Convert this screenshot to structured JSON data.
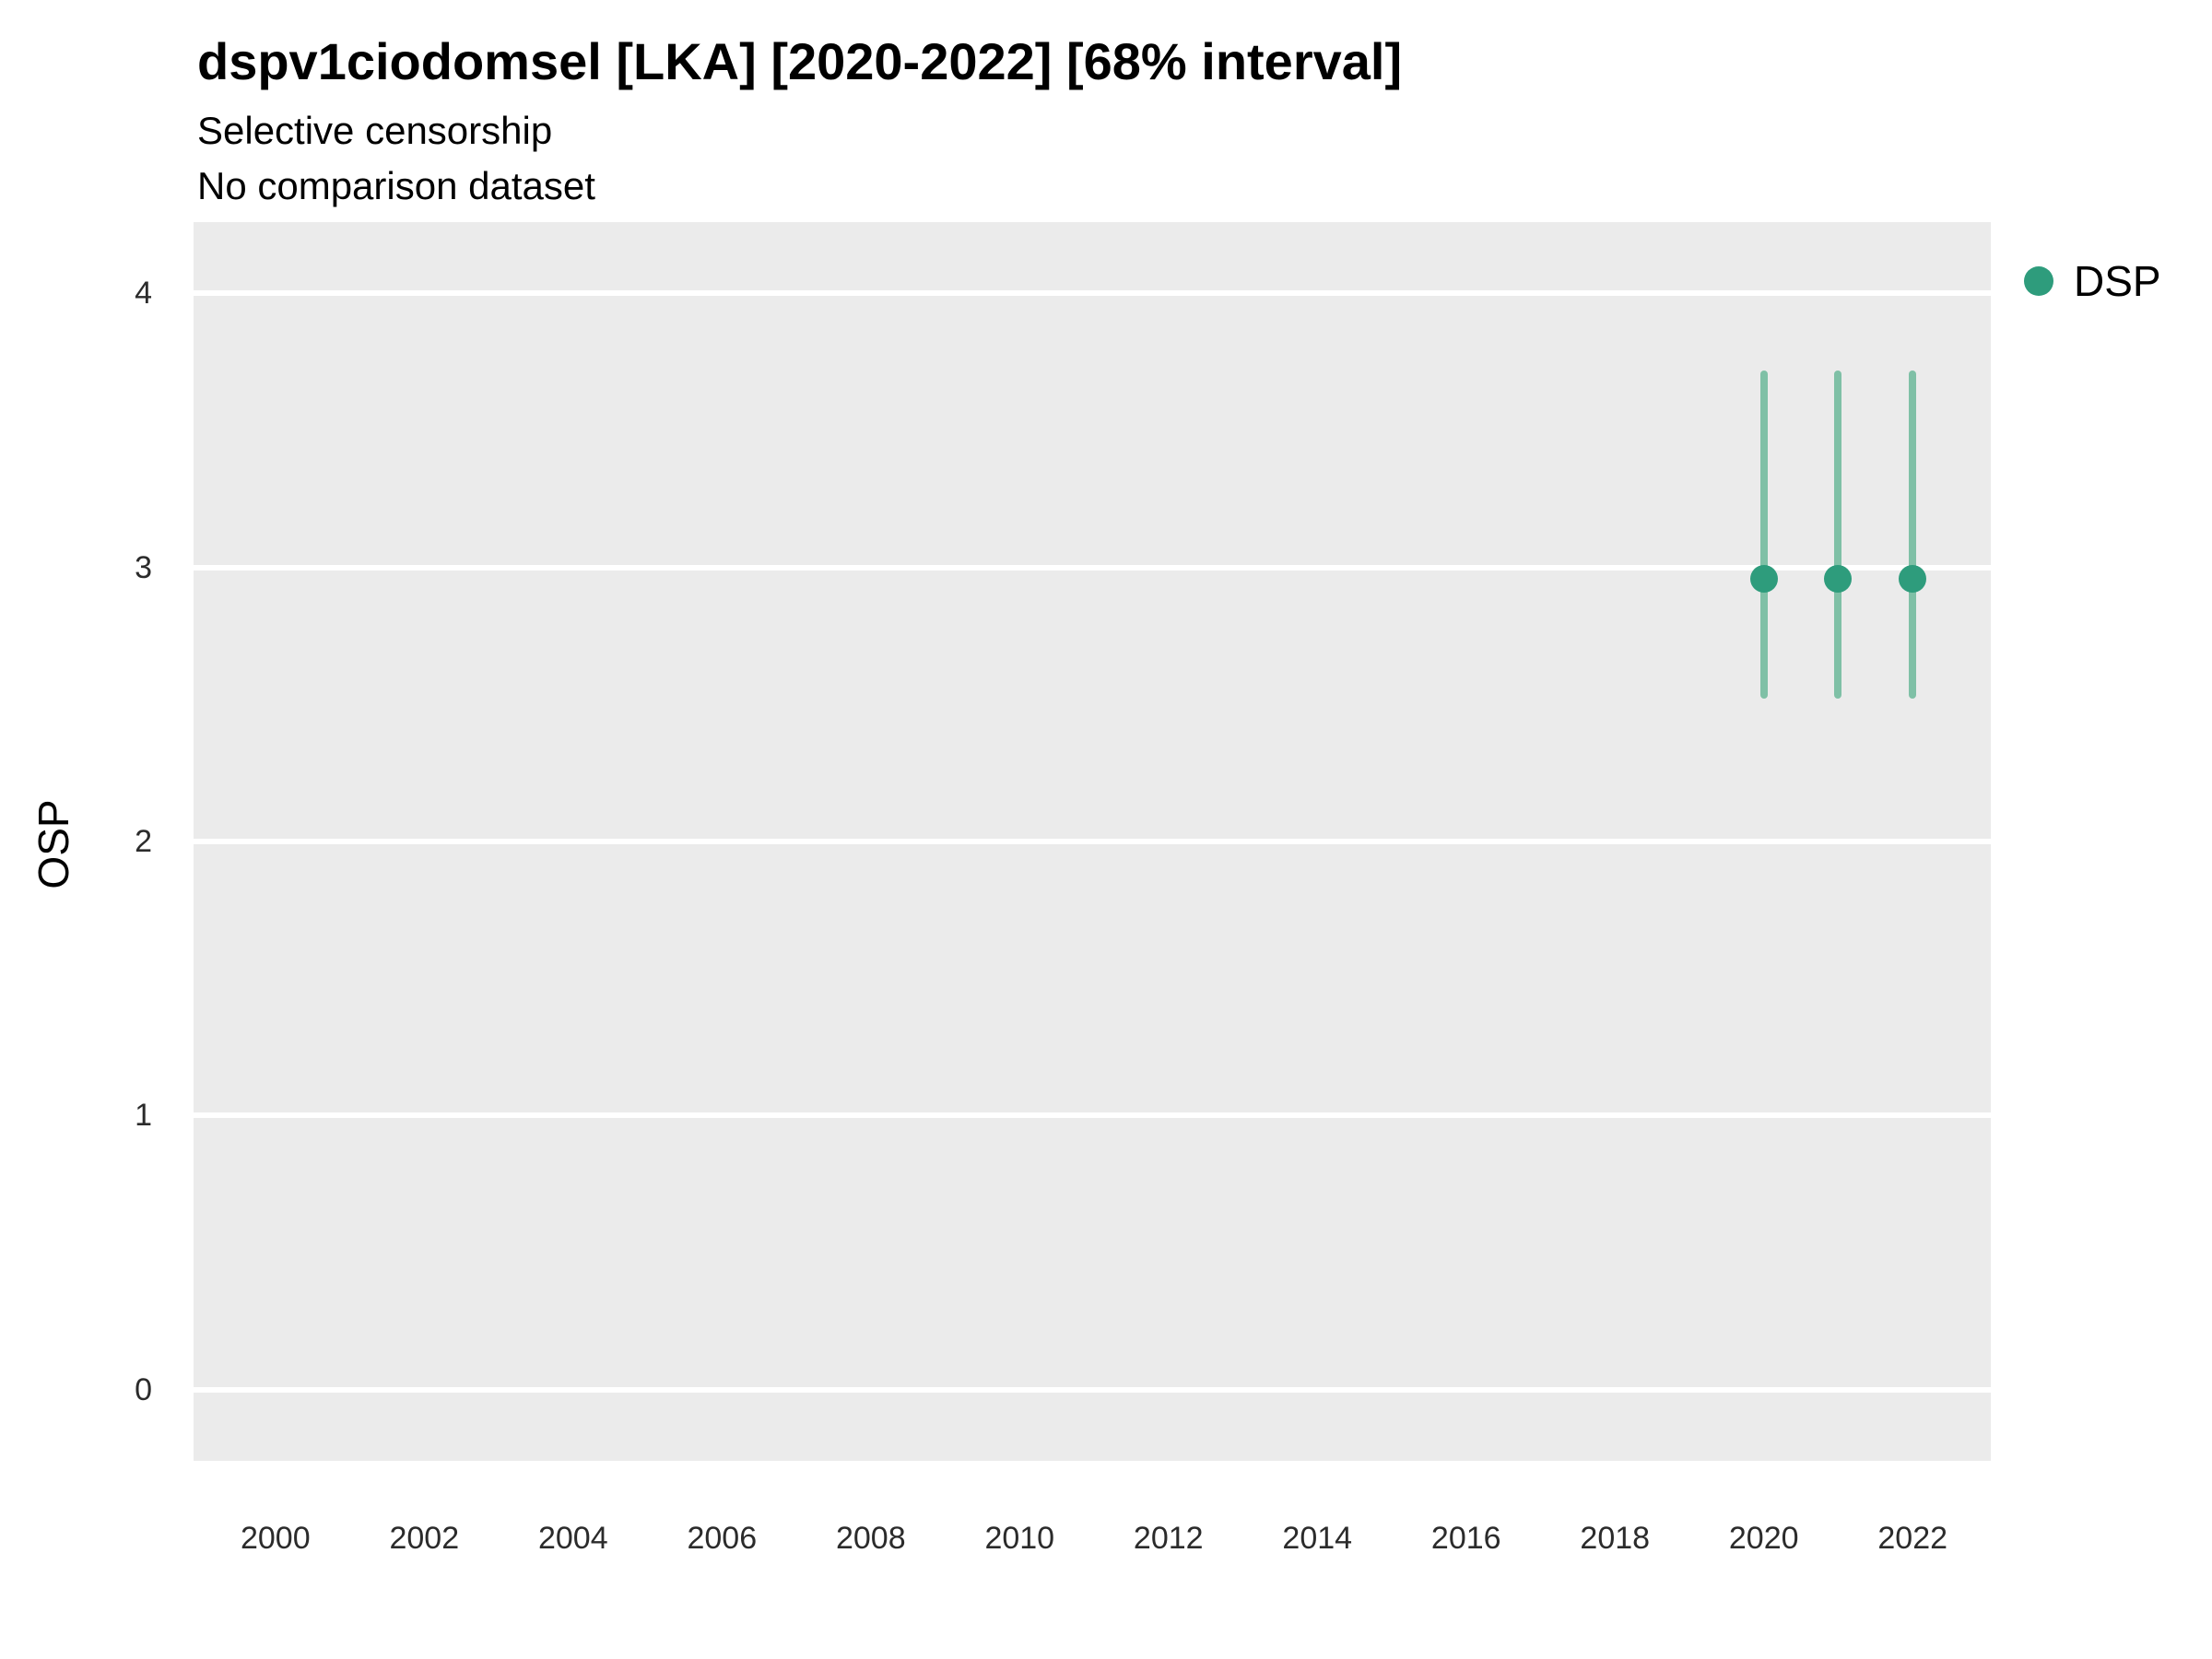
{
  "header": {
    "title": "dspv1ciodomsel [LKA] [2020-2022] [68% interval]",
    "subtitle1": "Selective censorship",
    "subtitle2": "No comparison dataset"
  },
  "legend": {
    "items": [
      {
        "label": "DSP",
        "color": "#2e9c7c"
      }
    ]
  },
  "chart_data": {
    "type": "scatter",
    "title": "dspv1ciodomsel [LKA] [2020-2022] [68% interval]",
    "subtitle": [
      "Selective censorship",
      "No comparison dataset"
    ],
    "xlabel": "",
    "ylabel": "OSP",
    "interval_label": "68% interval",
    "legend_position": "right",
    "grid": true,
    "panel_bg": "#ebebeb",
    "grid_color": "#ffffff",
    "xlim": [
      1998.9,
      2023.05
    ],
    "ylim": [
      -0.26,
      4.26
    ],
    "x_ticks": [
      2000,
      2002,
      2004,
      2006,
      2008,
      2010,
      2012,
      2014,
      2016,
      2018,
      2020,
      2022
    ],
    "y_ticks": [
      0,
      1,
      2,
      3,
      4
    ],
    "series": [
      {
        "name": "DSP",
        "point_color": "#2e9c7c",
        "interval_color": "#7fc0a6",
        "points": [
          {
            "x": 2020,
            "y": 2.96,
            "low": 2.52,
            "high": 3.72
          },
          {
            "x": 2021,
            "y": 2.96,
            "low": 2.52,
            "high": 3.72
          },
          {
            "x": 2022,
            "y": 2.96,
            "low": 2.52,
            "high": 3.72
          }
        ]
      }
    ]
  }
}
